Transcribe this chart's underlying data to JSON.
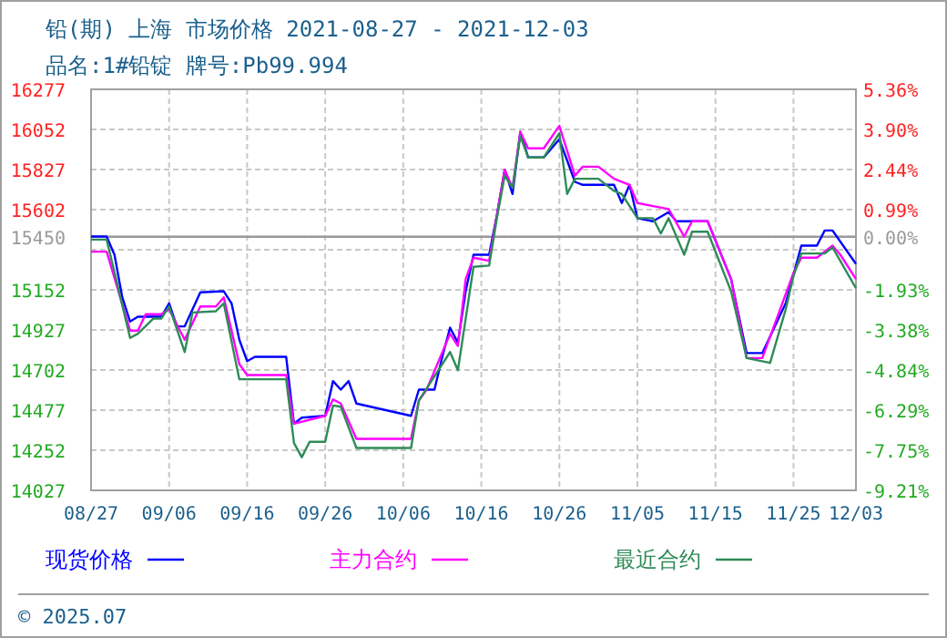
{
  "chart_data": {
    "type": "line",
    "title": "铅(期) 上海 市场价格 2021-08-27 - 2021-12-03",
    "subtitle": "品名:1#铅锭 牌号:Pb99.994",
    "xlim": [
      "2021-08-27",
      "2021-12-03"
    ],
    "xticks": [
      {
        "value": "2021-08-27",
        "label": "08/27"
      },
      {
        "value": "2021-09-06",
        "label": "09/06"
      },
      {
        "value": "2021-09-16",
        "label": "09/16"
      },
      {
        "value": "2021-09-26",
        "label": "09/26"
      },
      {
        "value": "2021-10-06",
        "label": "10/06"
      },
      {
        "value": "2021-10-16",
        "label": "10/16"
      },
      {
        "value": "2021-10-26",
        "label": "10/26"
      },
      {
        "value": "2021-11-05",
        "label": "11/05"
      },
      {
        "value": "2021-11-15",
        "label": "11/15"
      },
      {
        "value": "2021-11-25",
        "label": "11/25"
      },
      {
        "value": "2021-12-03",
        "label": "12/03"
      }
    ],
    "ylim": [
      14027,
      16277
    ],
    "yticks": [
      16277,
      16052,
      15827,
      15602,
      15450,
      {
        "value": 15377,
        "label": null
      },
      15152,
      14927,
      14702,
      14477,
      14252,
      14027
    ],
    "y2lim": [
      -9.21,
      5.36
    ],
    "y2ticks": [
      {
        "value": 5.36,
        "label": "5.36%"
      },
      {
        "value": 3.9,
        "label": "3.90%"
      },
      {
        "value": 2.44,
        "label": "2.44%"
      },
      {
        "value": 0.99,
        "label": "0.99%"
      },
      {
        "value": 0,
        "label": "0.00%"
      },
      {
        "value": -1.93,
        "label": "-1.93%"
      },
      {
        "value": -3.38,
        "label": "-3.38%"
      },
      {
        "value": -4.84,
        "label": "-4.84%"
      },
      {
        "value": -6.29,
        "label": "-6.29%"
      },
      {
        "value": -7.75,
        "label": "-7.75%"
      },
      {
        "value": -9.21,
        "label": "-9.21%"
      }
    ],
    "ref_lines": [
      {
        "axis": "y",
        "value": 15450,
        "color": "#999999"
      }
    ],
    "grid": true,
    "legend": "bottom",
    "marker": "none",
    "line_style": "solid",
    "annotations": [
      "© 2025.07"
    ],
    "series": [
      {
        "name": "现货价格",
        "color": "#0000ff",
        "x": [
          "2021-08-27",
          "2021-08-29",
          "2021-08-30",
          "2021-08-31",
          "2021-09-01",
          "2021-09-02",
          "2021-09-05",
          "2021-09-06",
          "2021-09-07",
          "2021-09-08",
          "2021-09-10",
          "2021-09-13",
          "2021-09-14",
          "2021-09-15",
          "2021-09-16",
          "2021-09-17",
          "2021-09-21",
          "2021-09-22",
          "2021-09-23",
          "2021-09-26",
          "2021-09-27",
          "2021-09-28",
          "2021-09-29",
          "2021-09-30",
          "2021-10-07",
          "2021-10-08",
          "2021-10-10",
          "2021-10-11",
          "2021-10-12",
          "2021-10-13",
          "2021-10-14",
          "2021-10-15",
          "2021-10-17",
          "2021-10-18",
          "2021-10-19",
          "2021-10-20",
          "2021-10-21",
          "2021-10-22",
          "2021-10-24",
          "2021-10-26",
          "2021-10-28",
          "2021-10-29",
          "2021-11-02",
          "2021-11-03",
          "2021-11-04",
          "2021-11-05",
          "2021-11-07",
          "2021-11-09",
          "2021-11-10",
          "2021-11-14",
          "2021-11-17",
          "2021-11-19",
          "2021-11-21",
          "2021-11-24",
          "2021-11-26",
          "2021-11-28",
          "2021-11-29",
          "2021-11-30",
          "2021-12-03"
        ],
        "values": [
          15451,
          15451,
          15349,
          15110,
          14974,
          15001,
          15001,
          15076,
          14947,
          14947,
          15138,
          15144,
          15076,
          14872,
          14752,
          14776,
          14776,
          14401,
          14435,
          14445,
          14640,
          14592,
          14640,
          14514,
          14445,
          14592,
          14592,
          14776,
          14940,
          14855,
          15144,
          15349,
          15349,
          15571,
          15826,
          15690,
          16038,
          15895,
          15895,
          15997,
          15758,
          15741,
          15741,
          15639,
          15741,
          15554,
          15537,
          15588,
          15537,
          15537,
          15213,
          14797,
          14797,
          15076,
          15400,
          15400,
          15485,
          15485,
          15298
        ]
      },
      {
        "name": "主力合约",
        "color": "#ff00ff",
        "x": [
          "2021-08-27",
          "2021-08-29",
          "2021-09-01",
          "2021-09-02",
          "2021-09-03",
          "2021-09-05",
          "2021-09-06",
          "2021-09-08",
          "2021-09-10",
          "2021-09-12",
          "2021-09-13",
          "2021-09-15",
          "2021-09-16",
          "2021-09-21",
          "2021-09-22",
          "2021-09-26",
          "2021-09-27",
          "2021-09-28",
          "2021-09-30",
          "2021-10-07",
          "2021-10-08",
          "2021-10-09",
          "2021-10-12",
          "2021-10-13",
          "2021-10-14",
          "2021-10-15",
          "2021-10-17",
          "2021-10-18",
          "2021-10-19",
          "2021-10-20",
          "2021-10-21",
          "2021-10-22",
          "2021-10-24",
          "2021-10-26",
          "2021-10-28",
          "2021-10-29",
          "2021-10-31",
          "2021-11-02",
          "2021-11-04",
          "2021-11-05",
          "2021-11-07",
          "2021-11-09",
          "2021-11-11",
          "2021-11-12",
          "2021-11-14",
          "2021-11-17",
          "2021-11-19",
          "2021-11-21",
          "2021-11-23",
          "2021-11-25",
          "2021-11-26",
          "2021-11-28",
          "2021-11-30",
          "2021-12-01",
          "2021-12-03"
        ],
        "values": [
          15366,
          15366,
          14923,
          14923,
          15015,
          15015,
          15042,
          14872,
          15059,
          15059,
          15110,
          14735,
          14674,
          14674,
          14401,
          14445,
          14537,
          14514,
          14316,
          14316,
          14531,
          14592,
          14906,
          14837,
          15213,
          15332,
          15315,
          15571,
          15826,
          15724,
          16038,
          15946,
          15946,
          16072,
          15792,
          15843,
          15843,
          15775,
          15741,
          15639,
          15622,
          15605,
          15451,
          15537,
          15537,
          15213,
          14769,
          14769,
          15008,
          15247,
          15332,
          15332,
          15400,
          15349,
          15213
        ]
      },
      {
        "name": "最近合约",
        "color": "#2e8b57",
        "x": [
          "2021-08-27",
          "2021-08-29",
          "2021-09-01",
          "2021-09-02",
          "2021-09-04",
          "2021-09-05",
          "2021-09-06",
          "2021-09-08",
          "2021-09-09",
          "2021-09-12",
          "2021-09-13",
          "2021-09-15",
          "2021-09-21",
          "2021-09-22",
          "2021-09-23",
          "2021-09-24",
          "2021-09-26",
          "2021-09-27",
          "2021-09-28",
          "2021-09-30",
          "2021-10-07",
          "2021-10-08",
          "2021-10-10",
          "2021-10-12",
          "2021-10-13",
          "2021-10-15",
          "2021-10-17",
          "2021-10-18",
          "2021-10-19",
          "2021-10-20",
          "2021-10-21",
          "2021-10-22",
          "2021-10-24",
          "2021-10-26",
          "2021-10-27",
          "2021-10-28",
          "2021-10-31",
          "2021-11-02",
          "2021-11-03",
          "2021-11-05",
          "2021-11-07",
          "2021-11-08",
          "2021-11-09",
          "2021-11-11",
          "2021-11-12",
          "2021-11-14",
          "2021-11-17",
          "2021-11-19",
          "2021-11-22",
          "2021-11-24",
          "2021-11-25",
          "2021-11-26",
          "2021-11-29",
          "2021-11-30",
          "2021-12-03"
        ],
        "values": [
          15434,
          15434,
          14882,
          14906,
          14991,
          14991,
          15059,
          14803,
          15025,
          15032,
          15076,
          14650,
          14650,
          14292,
          14213,
          14299,
          14299,
          14503,
          14496,
          14265,
          14265,
          14531,
          14667,
          14803,
          14701,
          15281,
          15288,
          15554,
          15792,
          15724,
          16014,
          15895,
          15895,
          16031,
          15690,
          15775,
          15775,
          15707,
          15690,
          15554,
          15554,
          15468,
          15554,
          15349,
          15478,
          15478,
          15144,
          14769,
          14742,
          15042,
          15230,
          15356,
          15356,
          15390,
          15161
        ]
      }
    ]
  }
}
